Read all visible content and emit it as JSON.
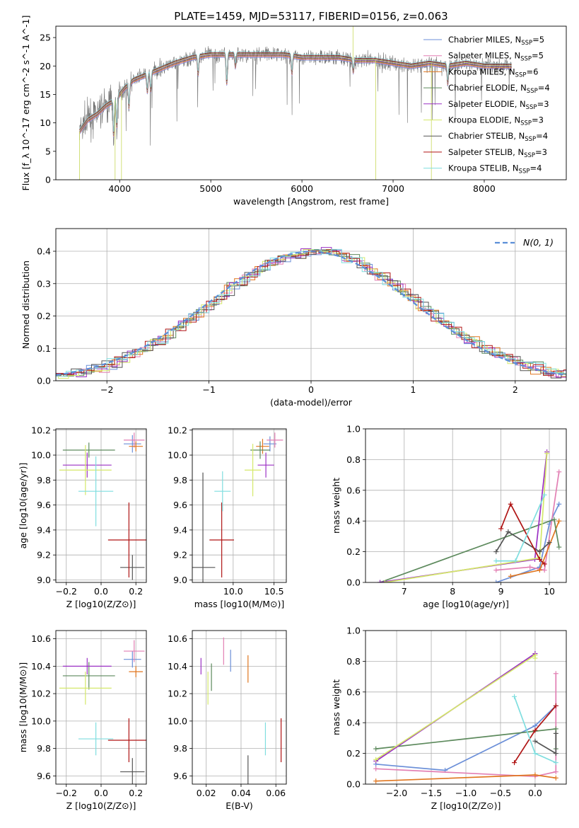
{
  "figure": {
    "title": "PLATE=1459, MJD=53117, FIBERID=0156, z=0.063"
  },
  "series": [
    {
      "name": "Chabrier MILES",
      "nssp": "5",
      "color": "#6b8fd8"
    },
    {
      "name": "Salpeter MILES",
      "nssp": "5",
      "color": "#e27fb3"
    },
    {
      "name": "Kroupa MILES",
      "nssp": "6",
      "color": "#e0761f"
    },
    {
      "name": "Chabrier ELODIE",
      "nssp": "4",
      "color": "#5d8a5d"
    },
    {
      "name": "Salpeter ELODIE",
      "nssp": "3",
      "color": "#9b30c4"
    },
    {
      "name": "Kroupa ELODIE",
      "nssp": "3",
      "color": "#d4e86a"
    },
    {
      "name": "Chabrier STELIB",
      "nssp": "4",
      "color": "#555555"
    },
    {
      "name": "Salpeter STELIB",
      "nssp": "3",
      "color": "#b01515"
    },
    {
      "name": "Kroupa STELIB",
      "nssp": "4",
      "color": "#7fdedf"
    }
  ],
  "chart_data": [
    {
      "id": "spectrum",
      "type": "line",
      "title": "PLATE=1459, MJD=53117, FIBERID=0156, z=0.063",
      "xlabel": "wavelength [Angstrom, rest frame]",
      "ylabel": "Flux [f_λ 10^-17 erg cm^-2 s^-1 A^-1]",
      "xlim": [
        3300,
        8900
      ],
      "ylim": [
        0,
        27
      ],
      "xticks": [
        4000,
        5000,
        6000,
        7000,
        8000
      ],
      "yticks": [
        0,
        5,
        10,
        15,
        20,
        25
      ],
      "legend": "top-right",
      "continuum_x": [
        3560,
        3650,
        3750,
        3850,
        3950,
        4050,
        4150,
        4300,
        4450,
        4600,
        4800,
        5000,
        5200,
        5400,
        5600,
        5800,
        6000,
        6200,
        6400,
        6600,
        6800,
        7000,
        7200,
        7400,
        7600,
        7800,
        8000,
        8200,
        8300
      ],
      "continuum_y": [
        8.5,
        10.5,
        11.5,
        13,
        14,
        16,
        17.5,
        18.5,
        19.5,
        20.5,
        21.5,
        22,
        22,
        22,
        22,
        22,
        21.5,
        21.5,
        21.5,
        21,
        21,
        20.5,
        20,
        20.5,
        20,
        20.5,
        20,
        20,
        20
      ]
    },
    {
      "id": "residuals",
      "type": "line",
      "xlabel": "(data-model)/error",
      "ylabel": "Normed distribution",
      "xlim": [
        -2.5,
        2.5
      ],
      "ylim": [
        0,
        0.47
      ],
      "xticks": [
        -2,
        -1,
        0,
        1,
        2
      ],
      "yticks": [
        0.0,
        0.1,
        0.2,
        0.3,
        0.4
      ],
      "legend": "top-right",
      "legend_label": "N(0, 1)"
    },
    {
      "id": "age-vs-Z",
      "type": "scatter",
      "xlabel": "Z [log10(Z/Z⊙)]",
      "ylabel": "age [log10(age/yr)]",
      "xlim": [
        -0.26,
        0.26
      ],
      "ylim": [
        8.98,
        10.21
      ],
      "xticks": [
        -0.2,
        0.0,
        0.2
      ],
      "yticks": [
        9.0,
        9.2,
        9.4,
        9.6,
        9.8,
        10.0,
        10.2
      ],
      "points": [
        {
          "series": 0,
          "x": 0.18,
          "xerr": 0.05,
          "y": 10.09,
          "yerr": 0.07
        },
        {
          "series": 1,
          "x": 0.19,
          "xerr": 0.06,
          "y": 10.12,
          "yerr": 0.06
        },
        {
          "series": 2,
          "x": 0.2,
          "xerr": 0.04,
          "y": 10.07,
          "yerr": 0.04
        },
        {
          "series": 3,
          "x": -0.07,
          "xerr": 0.15,
          "y": 10.04,
          "yerr": 0.06
        },
        {
          "series": 4,
          "x": -0.08,
          "xerr": 0.14,
          "y": 9.92,
          "yerr": 0.1
        },
        {
          "series": 5,
          "x": -0.09,
          "xerr": 0.15,
          "y": 9.88,
          "yerr": 0.2
        },
        {
          "series": 6,
          "x": 0.18,
          "xerr": 0.07,
          "y": 9.1,
          "yerr": 0.1
        },
        {
          "series": 7,
          "x": 0.16,
          "xerr": 0.12,
          "y": 9.32,
          "yerr": 0.3
        },
        {
          "series": 8,
          "x": -0.03,
          "xerr": 0.1,
          "y": 9.71,
          "yerr": 0.28
        }
      ]
    },
    {
      "id": "age-vs-mass",
      "type": "scatter",
      "xlabel": "mass [log10(M/M⊙)]",
      "ylabel": "",
      "xlim": [
        9.5,
        10.65
      ],
      "ylim": [
        8.98,
        10.21
      ],
      "xticks": [
        10.0,
        10.5
      ],
      "yticks": [
        9.0,
        9.2,
        9.4,
        9.6,
        9.8,
        10.0,
        10.2
      ],
      "points": [
        {
          "series": 0,
          "x": 10.45,
          "xerr": 0.08,
          "y": 10.09,
          "yerr": 0.06
        },
        {
          "series": 1,
          "x": 10.51,
          "xerr": 0.1,
          "y": 10.12,
          "yerr": 0.06
        },
        {
          "series": 2,
          "x": 10.36,
          "xerr": 0.08,
          "y": 10.07,
          "yerr": 0.06
        },
        {
          "series": 3,
          "x": 10.33,
          "xerr": 0.12,
          "y": 10.04,
          "yerr": 0.07
        },
        {
          "series": 4,
          "x": 10.4,
          "xerr": 0.1,
          "y": 9.92,
          "yerr": 0.1
        },
        {
          "series": 5,
          "x": 10.24,
          "xerr": 0.1,
          "y": 9.88,
          "yerr": 0.21
        },
        {
          "series": 6,
          "x": 9.63,
          "xerr": 0.15,
          "y": 9.1,
          "yerr": 0.76
        },
        {
          "series": 7,
          "x": 9.86,
          "xerr": 0.15,
          "y": 9.32,
          "yerr": 0.3
        },
        {
          "series": 8,
          "x": 9.87,
          "xerr": 0.1,
          "y": 9.71,
          "yerr": 0.16
        }
      ]
    },
    {
      "id": "weight-vs-age",
      "type": "line",
      "xlabel": "age [log10(age/yr)]",
      "ylabel": "mass weight",
      "xlim": [
        6.2,
        10.35
      ],
      "ylim": [
        0,
        1
      ],
      "xticks": [
        7,
        8,
        9,
        10
      ],
      "yticks": [
        0.0,
        0.2,
        0.4,
        0.6,
        0.8,
        1.0
      ],
      "lines": [
        {
          "series": 0,
          "x": [
            8.9,
            9.8,
            10.0,
            10.2
          ],
          "y": [
            0.0,
            0.1,
            0.38,
            0.51
          ]
        },
        {
          "series": 1,
          "x": [
            8.9,
            9.6,
            9.9,
            10.2
          ],
          "y": [
            0.08,
            0.1,
            0.08,
            0.72
          ]
        },
        {
          "series": 2,
          "x": [
            9.2,
            9.8,
            10.2
          ],
          "y": [
            0.04,
            0.08,
            0.4
          ]
        },
        {
          "series": 3,
          "x": [
            6.5,
            10.1,
            10.2
          ],
          "y": [
            0.0,
            0.41,
            0.23
          ]
        },
        {
          "series": 4,
          "x": [
            6.5,
            9.7,
            9.95
          ],
          "y": [
            0.0,
            0.15,
            0.85
          ]
        },
        {
          "series": 5,
          "x": [
            6.6,
            9.8,
            9.95
          ],
          "y": [
            0.0,
            0.16,
            0.84
          ]
        },
        {
          "series": 6,
          "x": [
            8.9,
            9.15,
            9.8,
            10.0
          ],
          "y": [
            0.2,
            0.33,
            0.2,
            0.26
          ]
        },
        {
          "series": 7,
          "x": [
            9.0,
            9.2,
            9.8,
            9.9
          ],
          "y": [
            0.35,
            0.51,
            0.15,
            0.12
          ]
        },
        {
          "series": 8,
          "x": [
            8.9,
            9.3,
            9.9
          ],
          "y": [
            0.14,
            0.14,
            0.57
          ]
        }
      ]
    },
    {
      "id": "mass-vs-Z",
      "type": "scatter",
      "xlabel": "Z [log10(Z/Z⊙)]",
      "ylabel": "mass [log10(M/M⊙)]",
      "xlim": [
        -0.26,
        0.26
      ],
      "ylim": [
        9.54,
        10.66
      ],
      "xticks": [
        -0.2,
        0.0,
        0.2
      ],
      "yticks": [
        9.6,
        9.8,
        10.0,
        10.2,
        10.4,
        10.6
      ],
      "points": [
        {
          "series": 0,
          "x": 0.18,
          "xerr": 0.05,
          "y": 10.45,
          "yerr": 0.06
        },
        {
          "series": 1,
          "x": 0.19,
          "xerr": 0.06,
          "y": 10.51,
          "yerr": 0.08
        },
        {
          "series": 2,
          "x": 0.2,
          "xerr": 0.04,
          "y": 10.36,
          "yerr": 0.04
        },
        {
          "series": 3,
          "x": -0.07,
          "xerr": 0.15,
          "y": 10.33,
          "yerr": 0.1
        },
        {
          "series": 4,
          "x": -0.08,
          "xerr": 0.14,
          "y": 10.4,
          "yerr": 0.06
        },
        {
          "series": 5,
          "x": -0.09,
          "xerr": 0.15,
          "y": 10.24,
          "yerr": 0.12
        },
        {
          "series": 6,
          "x": 0.18,
          "xerr": 0.07,
          "y": 9.63,
          "yerr": 0.1
        },
        {
          "series": 7,
          "x": 0.16,
          "xerr": 0.12,
          "y": 9.86,
          "yerr": 0.16
        },
        {
          "series": 8,
          "x": -0.03,
          "xerr": 0.1,
          "y": 9.87,
          "yerr": 0.12
        }
      ]
    },
    {
      "id": "mass-vs-EBV",
      "type": "scatter",
      "xlabel": "E(B-V)",
      "ylabel": "",
      "xlim": [
        0.012,
        0.066
      ],
      "ylim": [
        9.54,
        10.66
      ],
      "xticks": [
        0.02,
        0.04,
        0.06
      ],
      "yticks": [
        9.6,
        9.8,
        10.0,
        10.2,
        10.4,
        10.6
      ],
      "points": [
        {
          "series": 0,
          "x": 0.034,
          "y": 10.44,
          "yerr": 0.08
        },
        {
          "series": 1,
          "x": 0.03,
          "y": 10.51,
          "yerr": 0.1
        },
        {
          "series": 2,
          "x": 0.044,
          "y": 10.38,
          "yerr": 0.1
        },
        {
          "series": 3,
          "x": 0.023,
          "y": 10.32,
          "yerr": 0.1
        },
        {
          "series": 4,
          "x": 0.017,
          "y": 10.4,
          "yerr": 0.06
        },
        {
          "series": 5,
          "x": 0.021,
          "y": 10.24,
          "yerr": 0.12
        },
        {
          "series": 6,
          "x": 0.044,
          "y": 9.63,
          "yerr": 0.12
        },
        {
          "series": 7,
          "x": 0.063,
          "y": 9.86,
          "yerr": 0.16
        },
        {
          "series": 8,
          "x": 0.054,
          "y": 9.87,
          "yerr": 0.12
        }
      ]
    },
    {
      "id": "weight-vs-Z",
      "type": "line",
      "xlabel": "Z [log10(Z/Z⊙)]",
      "ylabel": "mass weight",
      "xlim": [
        -2.45,
        0.45
      ],
      "ylim": [
        0,
        1
      ],
      "xticks": [
        -2.0,
        -1.5,
        -1.0,
        -0.5,
        0.0
      ],
      "yticks": [
        0.0,
        0.2,
        0.4,
        0.6,
        0.8,
        1.0
      ],
      "lines": [
        {
          "series": 0,
          "x": [
            -2.3,
            -1.3,
            0.0,
            0.3
          ],
          "y": [
            0.13,
            0.09,
            0.38,
            0.51
          ]
        },
        {
          "series": 1,
          "x": [
            -2.3,
            0.0,
            0.3,
            0.3
          ],
          "y": [
            0.1,
            0.05,
            0.08,
            0.72
          ]
        },
        {
          "series": 2,
          "x": [
            -2.3,
            0.0,
            0.3
          ],
          "y": [
            0.02,
            0.06,
            0.04
          ]
        },
        {
          "series": 3,
          "x": [
            -2.3,
            0.3,
            0.3
          ],
          "y": [
            0.23,
            0.36,
            0.23
          ]
        },
        {
          "series": 4,
          "x": [
            -2.3,
            0.0,
            0.0
          ],
          "y": [
            0.15,
            0.85,
            0.85
          ]
        },
        {
          "series": 5,
          "x": [
            -2.3,
            0.0,
            0.0
          ],
          "y": [
            0.16,
            0.84,
            0.82
          ]
        },
        {
          "series": 6,
          "x": [
            0.0,
            0.3,
            0.3
          ],
          "y": [
            0.28,
            0.2,
            0.33
          ]
        },
        {
          "series": 7,
          "x": [
            -0.3,
            0.0,
            0.3
          ],
          "y": [
            0.14,
            0.35,
            0.51
          ]
        },
        {
          "series": 8,
          "x": [
            -0.3,
            0.0,
            0.3
          ],
          "y": [
            0.57,
            0.2,
            0.14
          ]
        }
      ]
    }
  ]
}
